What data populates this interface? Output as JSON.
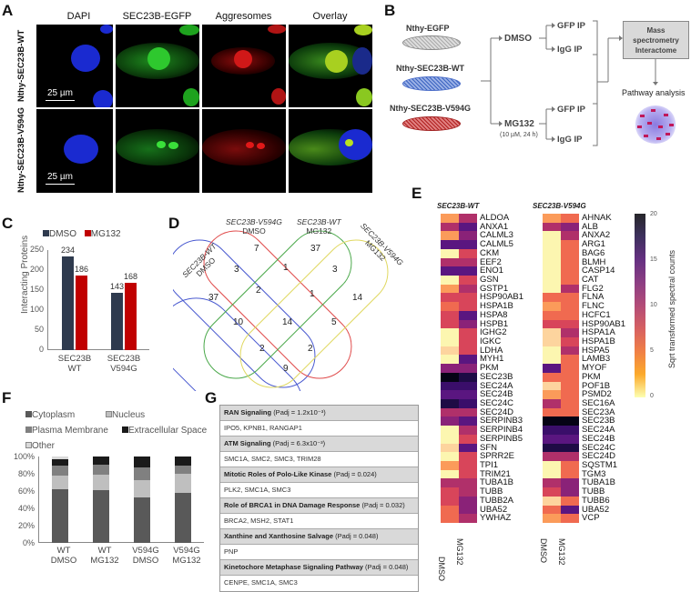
{
  "panels": {
    "A": {
      "label": "A",
      "columns": [
        "DAPI",
        "SEC23B-EGFP",
        "Aggresomes",
        "Overlay"
      ],
      "rows": [
        "Nthy-SEC23B-WT",
        "Nthy-SEC23B-V594G"
      ],
      "scale_bar": "25 µm"
    },
    "B": {
      "label": "B",
      "cell_lines": [
        "Nthy-EGFP",
        "Nthy-SEC23B-WT",
        "Nthy-SEC23B-V594G"
      ],
      "treatments": [
        "DMSO",
        "MG132"
      ],
      "mg132_note": "(10 µM, 24 h)",
      "ips": [
        "GFP IP",
        "IgG IP",
        "GFP IP",
        "IgG IP"
      ],
      "ms_box": "Mass spectrometry Interactome",
      "pathway": "Pathway analysis"
    },
    "C": {
      "label": "C"
    },
    "D": {
      "label": "D",
      "sets": [
        "SEC23B-WT DMSO",
        "SEC23B-V594G DMSO",
        "SEC23B-WT MG132",
        "SEC23B-V594G MG132"
      ],
      "set_labels": {
        "wt_dmso": [
          "SEC23B-WT",
          "DMSO"
        ],
        "v_dmso": [
          "SEC23B-V594G",
          "DMSO"
        ],
        "wt_mg": [
          "SEC23B-WT",
          "MG132"
        ],
        "v_mg": [
          "SEC23B-V594G",
          "MG132"
        ]
      },
      "counts": {
        "wt_dmso_only": "37",
        "v_dmso_only": "7",
        "wt_mg_only": "37",
        "v_mg_only": "14",
        "a": "3",
        "b": "1",
        "c": "3",
        "d": "2",
        "e": "1",
        "f": "10",
        "g": "14",
        "h": "5",
        "i": "2",
        "j": "2",
        "k": "9"
      }
    },
    "E": {
      "label": "E",
      "wt_title": "SEC23B-WT",
      "v_title": "SEC23B-V594G",
      "xlabels": [
        "DMSO",
        "MG132"
      ],
      "colorbar_label": "Sqrt transformed spectral counts",
      "colorbar_ticks": [
        "20",
        "15",
        "10",
        "5",
        "0"
      ]
    },
    "F": {
      "label": "F"
    },
    "G": {
      "label": "G",
      "pathways": [
        {
          "name": "RAN Signaling",
          "p": "(Padj = 1.2x10⁻³)",
          "genes": "IPO5, KPNB1, RANGAP1"
        },
        {
          "name": "ATM Signaling",
          "p": "(Padj = 6.3x10⁻³)",
          "genes": "SMC1A, SMC2, SMC3, TRIM28"
        },
        {
          "name": "Mitotic Roles of Polo-Like Kinase",
          "p": "(Padj = 0.024)",
          "genes": "PLK2, SMC1A, SMC3"
        },
        {
          "name": "Role of BRCA1 in DNA Damage Response",
          "p": "(Padj = 0.032)",
          "genes": "BRCA2, MSH2, STAT1"
        },
        {
          "name": "Xanthine and Xanthosine Salvage",
          "p": "(Padj = 0.048)",
          "genes": "PNP"
        },
        {
          "name": "Kinetochore Metaphase Signaling Pathway",
          "p": "(Padj = 0.048)",
          "genes": "CENPE, SMC1A, SMC3"
        }
      ]
    }
  },
  "chart_data": [
    {
      "type": "bar",
      "panel": "C",
      "categories": [
        "SEC23B WT",
        "SEC23B V594G"
      ],
      "series": [
        {
          "name": "DMSO",
          "color": "#2e3a4e",
          "values": [
            234,
            143
          ]
        },
        {
          "name": "MG132",
          "color": "#c00000",
          "values": [
            186,
            168
          ]
        }
      ],
      "ylabel": "Interacting Proteins",
      "ylim": [
        0,
        250
      ],
      "yticks": [
        "250",
        "200",
        "150",
        "100",
        "50",
        "0"
      ],
      "legend": [
        "DMSO",
        "MG132"
      ],
      "xtick_labels": [
        [
          "SEC23B",
          "WT"
        ],
        [
          "SEC23B",
          "V594G"
        ]
      ]
    },
    {
      "type": "bar",
      "panel": "F",
      "stacked": true,
      "categories": [
        "WT DMSO",
        "WT MG132",
        "V594G DMSO",
        "V594G MG132"
      ],
      "xtick_labels": [
        [
          "WT",
          "DMSO"
        ],
        [
          "WT",
          "MG132"
        ],
        [
          "V594G",
          "DMSO"
        ],
        [
          "V594G",
          "MG132"
        ]
      ],
      "series": [
        {
          "name": "Cytoplasm",
          "color": "#595959",
          "values": [
            62,
            61,
            53,
            58
          ]
        },
        {
          "name": "Nucleus",
          "color": "#bfbfbf",
          "values": [
            16,
            18,
            20,
            22
          ]
        },
        {
          "name": "Plasma Membrane",
          "color": "#808080",
          "values": [
            11,
            12,
            14,
            10
          ]
        },
        {
          "name": "Extracellular Space",
          "color": "#1a1a1a",
          "values": [
            8,
            9,
            13,
            10
          ]
        },
        {
          "name": "Other",
          "color": "#d9d9d9",
          "values": [
            3,
            0,
            0,
            0
          ]
        }
      ],
      "yticks": [
        "100%",
        "80%",
        "60%",
        "40%",
        "20%",
        "0%"
      ],
      "ylim": [
        0,
        100
      ],
      "legend": [
        "Cytoplasm",
        "Nucleus",
        "Plasma Membrane",
        "Extracellular Space",
        "Other"
      ]
    },
    {
      "type": "heatmap",
      "panel": "E",
      "colorbar_range": [
        0,
        20
      ],
      "colormap": "magma_r",
      "wt": {
        "genes": [
          "ALDOA",
          "ANXA1",
          "CALML3",
          "CALML5",
          "CKM",
          "EEF2",
          "ENO1",
          "GSN",
          "GSTP1",
          "HSP90AB1",
          "HSPA1B",
          "HSPA8",
          "HSPB1",
          "IGHG2",
          "IGKC",
          "LDHA",
          "MYH1",
          "PKM",
          "SEC23B",
          "SEC24A",
          "SEC24B",
          "SEC24C",
          "SEC24D",
          "SERPINB3",
          "SERPINB4",
          "SERPINB5",
          "SFN",
          "SPRR2E",
          "TPI1",
          "TRIM21",
          "TUBA1B",
          "TUBB",
          "TUBB2A",
          "UBA52",
          "YWHAZ"
        ],
        "dmso": [
          4,
          9,
          3,
          14,
          0,
          9,
          14,
          0,
          3,
          7,
          5,
          8,
          8,
          0,
          0,
          2,
          0,
          12,
          20,
          15,
          14,
          17,
          9,
          12,
          0,
          0,
          2,
          0,
          4,
          0,
          9,
          8,
          7,
          6,
          5
        ],
        "mg132": [
          9,
          13,
          11,
          14,
          7,
          9,
          13,
          7,
          10,
          7,
          8,
          13,
          12,
          7,
          8,
          8,
          13,
          12,
          17,
          15,
          13,
          16,
          9,
          14,
          9,
          7,
          14,
          7,
          7,
          7,
          10,
          10,
          12,
          11,
          9
        ]
      },
      "v594g": {
        "genes": [
          "AHNAK",
          "ALB",
          "ANXA2",
          "ARG1",
          "BAG6",
          "BLMH",
          "CASP14",
          "CAT",
          "FLG2",
          "FLNA",
          "FLNC",
          "HCFC1",
          "HSP90AB1",
          "HSPA1A",
          "HSPA1B",
          "HSPA5",
          "LAMB3",
          "MYOF",
          "PKM",
          "POF1B",
          "PSMD2",
          "SEC16A",
          "SEC23A",
          "SEC23B",
          "SEC24A",
          "SEC24B",
          "SEC24C",
          "SEC24D",
          "SQSTM1",
          "TGM3",
          "TUBA1B",
          "TUBB",
          "TUBB6",
          "UBA52",
          "VCP"
        ],
        "dmso": [
          4,
          10,
          0,
          0,
          0,
          0,
          0,
          0,
          0,
          6,
          4,
          6,
          7,
          2,
          2,
          0,
          0,
          13,
          6,
          1,
          3,
          9,
          5,
          20,
          15,
          14,
          17,
          10,
          0,
          0,
          9,
          7,
          2,
          6,
          3
        ],
        "mg132": [
          5,
          12,
          9,
          6,
          6,
          6,
          6,
          5,
          10,
          6,
          6,
          6,
          8,
          9,
          7,
          10,
          6,
          5,
          6,
          6,
          6,
          6,
          6,
          19,
          16,
          14,
          17,
          10,
          6,
          6,
          12,
          11,
          5,
          13,
          5
        ]
      }
    }
  ]
}
